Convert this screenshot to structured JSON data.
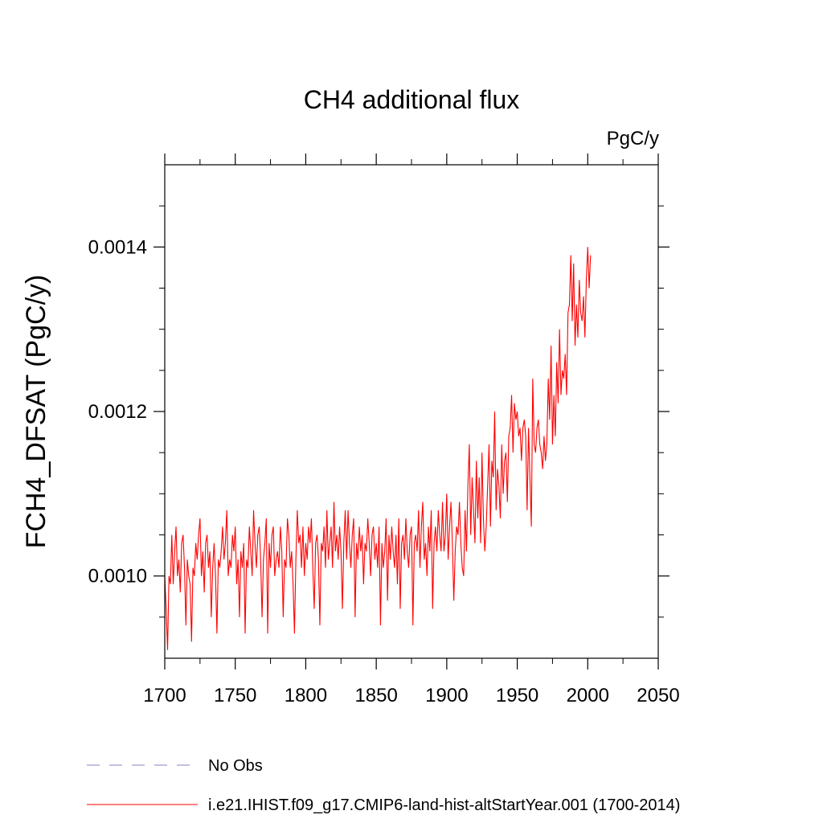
{
  "chart_data": {
    "type": "line",
    "title": "CH4 additional flux",
    "units": "PgC/y",
    "ylabel": "FCH4_DFSAT  (PgC/y)",
    "xlabel": "",
    "xlim": [
      1700,
      2050
    ],
    "ylim": [
      0.0009,
      0.0015
    ],
    "xticks": [
      1700,
      1750,
      1800,
      1850,
      1900,
      1950,
      2000,
      2050
    ],
    "xtick_labels": [
      "1700",
      "1750",
      "1800",
      "1850",
      "1900",
      "1950",
      "2000",
      "2050"
    ],
    "yticks": [
      0.001,
      0.0012,
      0.0014
    ],
    "ytick_labels": [
      "0.0010",
      "0.0012",
      "0.0014"
    ],
    "y_minor_step": 5e-05,
    "x_minor_step": 25,
    "grid": false,
    "legend_position": "bottom",
    "series": [
      {
        "name": "No Obs",
        "color": "#8080c0",
        "dash": "dashed",
        "x": [],
        "y": []
      },
      {
        "name": "i.e21.IHIST.f09_g17.CMIP6-land-hist-altStartYear.001 (1700-2014)",
        "color": "#ff0000",
        "dash": "solid",
        "x_start": 1700,
        "x_step": 1,
        "y": [
          0.001,
          0.00096,
          0.00091,
          0.001,
          0.00099,
          0.00105,
          0.00099,
          0.00103,
          0.00106,
          0.001,
          0.00102,
          0.00098,
          0.00104,
          0.00105,
          0.00101,
          0.00094,
          0.00102,
          0.001,
          0.00099,
          0.00092,
          0.00101,
          0.001,
          0.00104,
          0.00102,
          0.00105,
          0.00107,
          0.001,
          0.00103,
          0.00098,
          0.00104,
          0.00105,
          0.00101,
          0.00103,
          0.00095,
          0.00101,
          0.00104,
          0.001,
          0.00093,
          0.00102,
          0.00101,
          0.00103,
          0.00106,
          0.00102,
          0.00104,
          0.00108,
          0.001,
          0.00102,
          0.00101,
          0.00105,
          0.00103,
          0.00106,
          0.00099,
          0.00102,
          0.00095,
          0.00103,
          0.00101,
          0.00104,
          0.00093,
          0.00102,
          0.00101,
          0.00106,
          0.00103,
          0.001,
          0.00108,
          0.00104,
          0.00101,
          0.00105,
          0.00106,
          0.00102,
          0.00095,
          0.00102,
          0.00104,
          0.00107,
          0.00093,
          0.00104,
          0.00101,
          0.00105,
          0.00106,
          0.001,
          0.00102,
          0.00103,
          0.00101,
          0.00106,
          0.00103,
          0.00095,
          0.00102,
          0.00101,
          0.00107,
          0.00105,
          0.00101,
          0.00103,
          0.00099,
          0.00093,
          0.00102,
          0.00108,
          0.00104,
          0.00105,
          0.00101,
          0.00106,
          0.001,
          0.00104,
          0.00102,
          0.00106,
          0.00104,
          0.00107,
          0.00101,
          0.00096,
          0.00104,
          0.00105,
          0.00102,
          0.00094,
          0.00104,
          0.00103,
          0.00106,
          0.00101,
          0.00108,
          0.00102,
          0.00104,
          0.00106,
          0.00101,
          0.00109,
          0.00103,
          0.00105,
          0.00102,
          0.00106,
          0.00103,
          0.00096,
          0.00104,
          0.00108,
          0.00102,
          0.00108,
          0.00104,
          0.00101,
          0.00105,
          0.00107,
          0.00095,
          0.00104,
          0.00102,
          0.00106,
          0.00103,
          0.00105,
          0.00099,
          0.00104,
          0.00103,
          0.00107,
          0.00104,
          0.001,
          0.00105,
          0.00106,
          0.00102,
          0.00104,
          0.00101,
          0.00106,
          0.00094,
          0.00104,
          0.00101,
          0.00103,
          0.00107,
          0.00097,
          0.00105,
          0.00102,
          0.00106,
          0.00103,
          0.00101,
          0.00105,
          0.00099,
          0.00107,
          0.00096,
          0.00104,
          0.00105,
          0.00102,
          0.00107,
          0.00103,
          0.00101,
          0.00105,
          0.00106,
          0.00094,
          0.00104,
          0.00105,
          0.00103,
          0.00108,
          0.00101,
          0.00106,
          0.00109,
          0.00102,
          0.00104,
          0.001,
          0.00106,
          0.00103,
          0.00108,
          0.00096,
          0.00104,
          0.00106,
          0.00103,
          0.00108,
          0.00105,
          0.00103,
          0.00109,
          0.00103,
          0.00105,
          0.0011,
          0.00102,
          0.00106,
          0.00109,
          0.00104,
          0.00097,
          0.00103,
          0.00106,
          0.00105,
          0.00109,
          0.00104,
          0.00101,
          0.001,
          0.00108,
          0.00103,
          0.00111,
          0.00116,
          0.00105,
          0.00112,
          0.00108,
          0.00104,
          0.00114,
          0.00107,
          0.00112,
          0.00104,
          0.00115,
          0.00107,
          0.00103,
          0.00106,
          0.00111,
          0.00116,
          0.00106,
          0.00114,
          0.00112,
          0.0012,
          0.00108,
          0.00113,
          0.00111,
          0.00107,
          0.00116,
          0.0011,
          0.00114,
          0.00115,
          0.00109,
          0.00117,
          0.00118,
          0.00122,
          0.00115,
          0.00121,
          0.00119,
          0.0012,
          0.00117,
          0.00118,
          0.00114,
          0.00118,
          0.00119,
          0.00117,
          0.00108,
          0.00118,
          0.00112,
          0.00106,
          0.00124,
          0.00116,
          0.00115,
          0.00118,
          0.00119,
          0.00116,
          0.00115,
          0.00113,
          0.00117,
          0.00114,
          0.00116,
          0.00124,
          0.00119,
          0.00128,
          0.00116,
          0.00122,
          0.00117,
          0.00126,
          0.00121,
          0.0013,
          0.00122,
          0.00125,
          0.00124,
          0.00127,
          0.00122,
          0.00132,
          0.00133,
          0.00139,
          0.00131,
          0.00138,
          0.00128,
          0.00133,
          0.00129,
          0.00136,
          0.00132,
          0.00131,
          0.00134,
          0.00129,
          0.00136,
          0.0014,
          0.00135,
          0.00139
        ]
      }
    ]
  }
}
